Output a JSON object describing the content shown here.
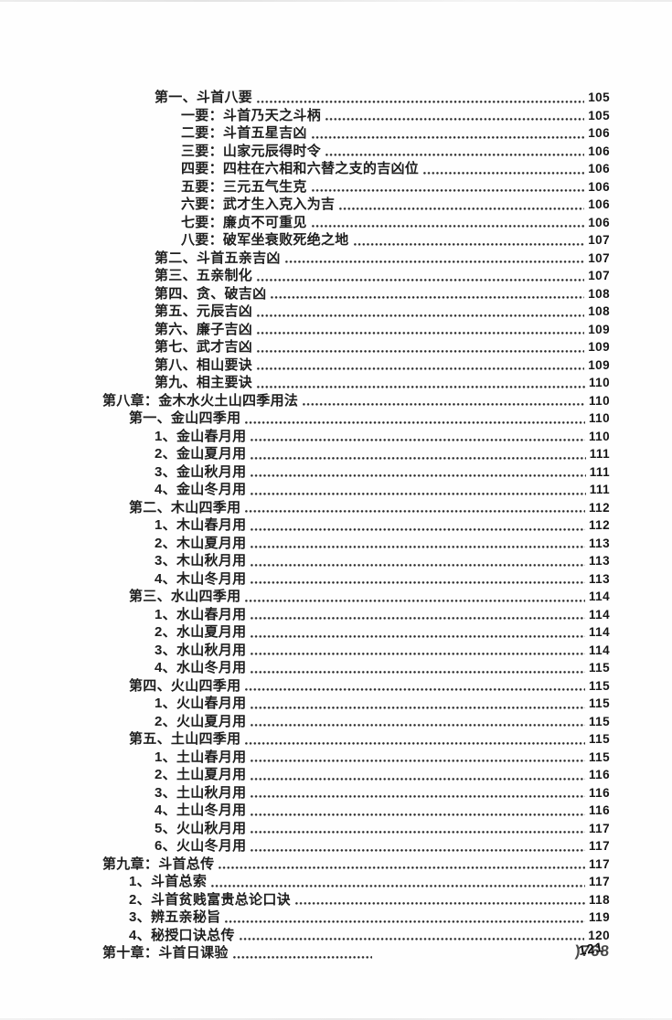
{
  "document": {
    "kind": "scanned-book-table-of-contents",
    "text_color": "#1e1e1e",
    "toc": [
      {
        "label": "第一、斗首八要",
        "page": "105",
        "level": 2
      },
      {
        "label": "一要：斗首乃天之斗柄",
        "page": "105",
        "level": 3
      },
      {
        "label": "二要：斗首五星吉凶",
        "page": "106",
        "level": 3
      },
      {
        "label": "三要：山家元辰得时令",
        "page": "106",
        "level": 3
      },
      {
        "label": "四要：四柱在六相和六替之支的吉凶位",
        "page": "106",
        "level": 3
      },
      {
        "label": "五要：三元五气生克",
        "page": "106",
        "level": 3
      },
      {
        "label": "六要：武才生入克入为吉",
        "page": "106",
        "level": 3
      },
      {
        "label": "七要：廉贞不可重见",
        "page": "106",
        "level": 3
      },
      {
        "label": "八要：破军坐衰败死绝之地",
        "page": "107",
        "level": 3
      },
      {
        "label": "第二、斗首五亲吉凶",
        "page": "107",
        "level": 2
      },
      {
        "label": "第三、五亲制化",
        "page": "107",
        "level": 2
      },
      {
        "label": "第四、贪、破吉凶",
        "page": "108",
        "level": 2
      },
      {
        "label": "第五、元辰吉凶",
        "page": "108",
        "level": 2
      },
      {
        "label": "第六、廉子吉凶",
        "page": "109",
        "level": 2
      },
      {
        "label": "第七、武才吉凶",
        "page": "109",
        "level": 2
      },
      {
        "label": "第八、相山要诀",
        "page": "109",
        "level": 2
      },
      {
        "label": "第九、相主要诀",
        "page": "110",
        "level": 2
      },
      {
        "label": "第八章：金木水火土山四季用法",
        "page": "110",
        "level": 0
      },
      {
        "label": "第一、金山四季用",
        "page": "110",
        "level": 1
      },
      {
        "label": "1、金山春月用",
        "page": "110",
        "level": 2
      },
      {
        "label": "2、金山夏月用",
        "page": "111",
        "level": 2
      },
      {
        "label": "3、金山秋月用",
        "page": "111",
        "level": 2
      },
      {
        "label": "4、金山冬月用",
        "page": "111",
        "level": 2
      },
      {
        "label": "第二、木山四季用",
        "page": "112",
        "level": 1
      },
      {
        "label": "1、木山春月用",
        "page": "112",
        "level": 2
      },
      {
        "label": "2、木山夏月用",
        "page": "113",
        "level": 2
      },
      {
        "label": "3、木山秋月用",
        "page": "113",
        "level": 2
      },
      {
        "label": "4、木山冬月用",
        "page": "113",
        "level": 2
      },
      {
        "label": "第三、水山四季用",
        "page": "114",
        "level": 1
      },
      {
        "label": "1、水山春月用",
        "page": "114",
        "level": 2
      },
      {
        "label": "2、水山夏月用",
        "page": "114",
        "level": 2
      },
      {
        "label": "3、水山秋月用",
        "page": "114",
        "level": 2
      },
      {
        "label": "4、水山冬月用",
        "page": "115",
        "level": 2
      },
      {
        "label": "第四、火山四季用",
        "page": "115",
        "level": 1
      },
      {
        "label": "1、火山春月用",
        "page": "115",
        "level": 2
      },
      {
        "label": "2、火山夏月用",
        "page": "115",
        "level": 2
      },
      {
        "label": "第五、土山四季用",
        "page": "115",
        "level": 1
      },
      {
        "label": "1、土山春月用",
        "page": "115",
        "level": 2
      },
      {
        "label": "2、土山夏月用",
        "page": "116",
        "level": 2
      },
      {
        "label": "3、土山秋月用",
        "page": "116",
        "level": 2
      },
      {
        "label": "4、土山冬月用",
        "page": "116",
        "level": 2
      },
      {
        "label": "5、火山秋月用",
        "page": "117",
        "level": 2
      },
      {
        "label": "6、火山冬月用",
        "page": "117",
        "level": 2
      },
      {
        "label": "第九章：斗首总传",
        "page": "117",
        "level": 0
      },
      {
        "label": "1、斗首总索",
        "page": "117",
        "level": 1
      },
      {
        "label": "2、斗首贫贱富贵总论口诀",
        "page": "118",
        "level": 1
      },
      {
        "label": "3、辨五亲秘旨",
        "page": "119",
        "level": 1
      },
      {
        "label": "4、秘授口诀总传",
        "page": "120",
        "level": 1
      },
      {
        "label": "第十章：斗首日课验",
        "page": "121",
        "level": 0,
        "page_overlap": ")768"
      }
    ]
  }
}
